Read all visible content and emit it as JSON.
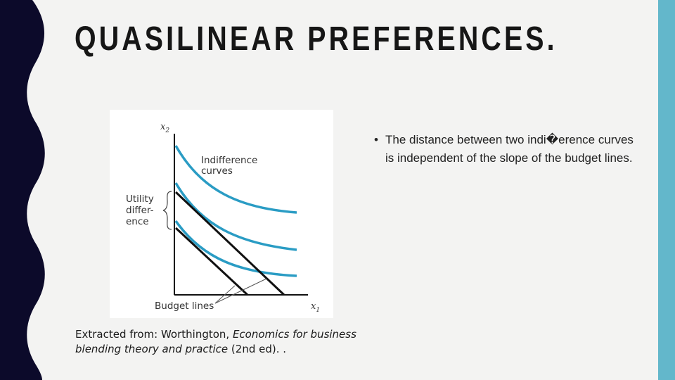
{
  "slide": {
    "title": "QUASILINEAR PREFERENCES.",
    "colors": {
      "left_band": "#0c0a2a",
      "right_band": "#63b7cb",
      "background": "#f3f3f2",
      "curve": "#2a9cc4",
      "line": "#111111"
    }
  },
  "figure": {
    "y_axis_label": "x",
    "y_axis_sub": "2",
    "x_axis_label": "x",
    "x_axis_sub": "1",
    "curves_label_line1": "Indifference",
    "curves_label_line2": "curves",
    "utility_label_line1": "Utility",
    "utility_label_line2": "differ-",
    "utility_label_line3": "ence",
    "budget_label": "Budget lines"
  },
  "caption": {
    "prefix": "Extracted from: Worthington, ",
    "title_italic": "Economics for business blending theory and practice",
    "suffix": " (2nd ed). ."
  },
  "bullets": [
    {
      "marker": "•",
      "text": "The distance between two indi�erence curves is independent of the slope of the budget lines."
    }
  ]
}
